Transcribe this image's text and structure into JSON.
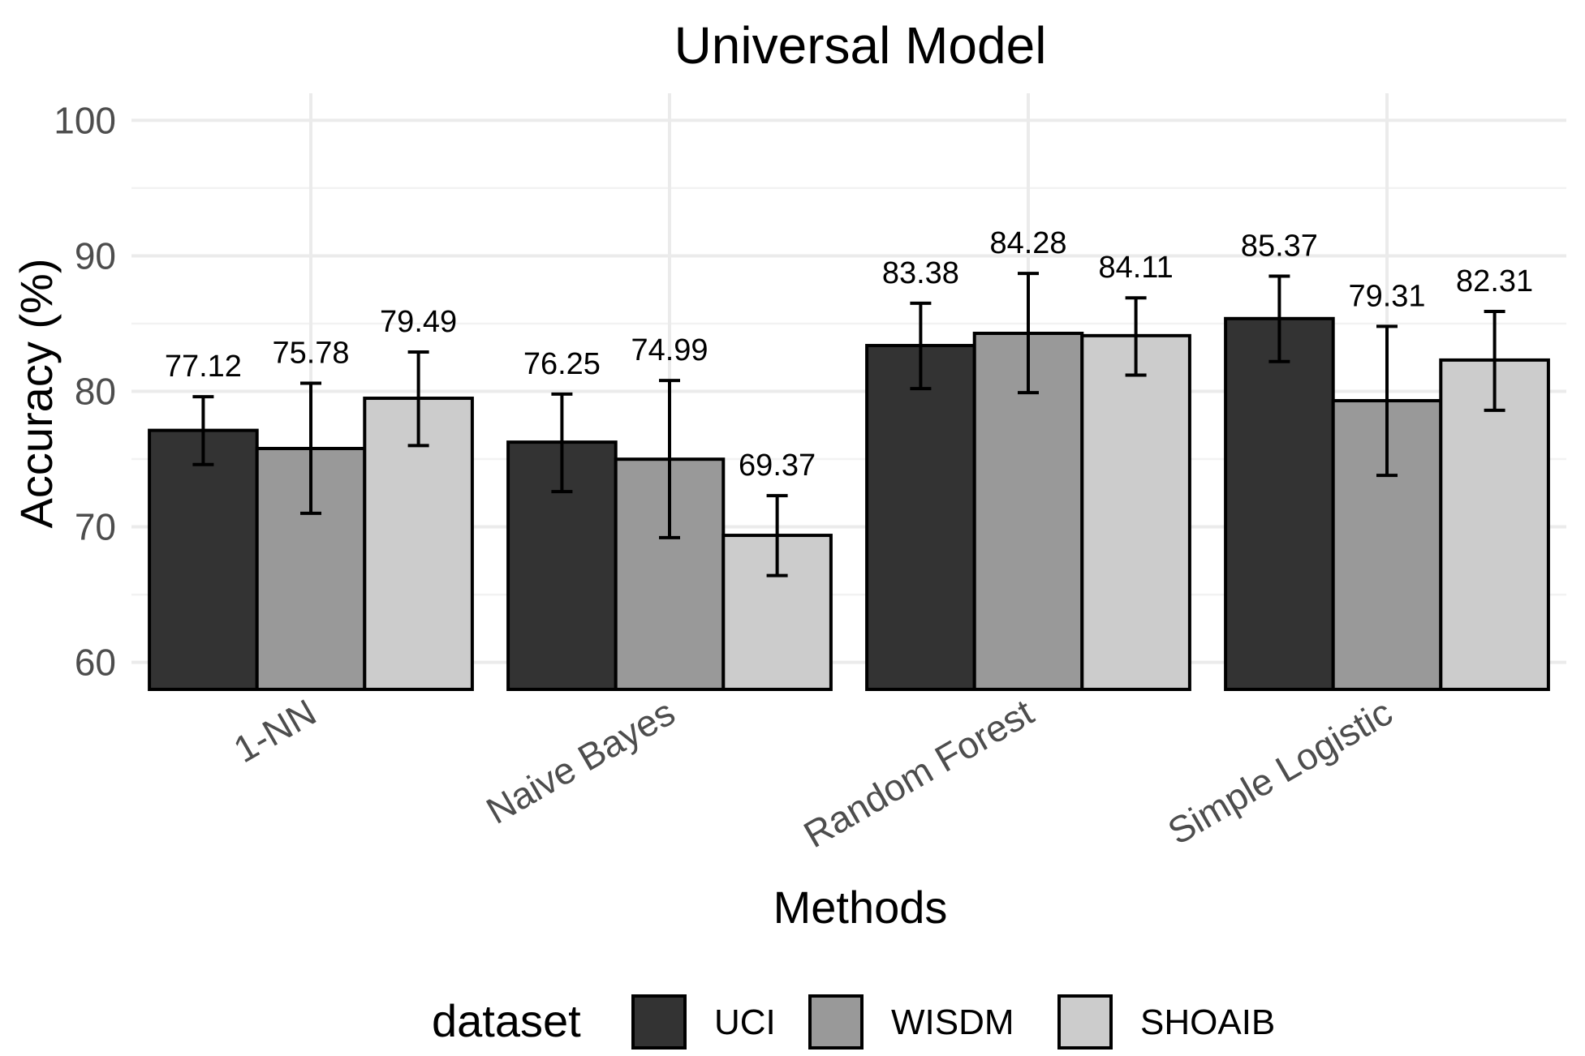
{
  "chart_data": {
    "type": "bar",
    "title": "Universal Model",
    "xlabel": "Methods",
    "ylabel": "Accuracy (%)",
    "ylim": [
      58,
      102
    ],
    "yticks": [
      60,
      70,
      80,
      90,
      100
    ],
    "grid": true,
    "categories": [
      "1-NN",
      "Naive Bayes",
      "Random Forest",
      "Simple Logistic"
    ],
    "legend": {
      "title": "dataset",
      "position": "bottom"
    },
    "series": [
      {
        "name": "UCI",
        "color": "#333333",
        "values": [
          77.12,
          76.25,
          83.38,
          85.37
        ],
        "err_low": [
          74.6,
          72.6,
          80.2,
          82.2
        ],
        "err_high": [
          79.6,
          79.8,
          86.5,
          88.5
        ]
      },
      {
        "name": "WISDM",
        "color": "#999999",
        "values": [
          75.78,
          74.99,
          84.28,
          79.31
        ],
        "err_low": [
          71.0,
          69.2,
          79.9,
          73.8
        ],
        "err_high": [
          80.6,
          80.8,
          88.7,
          84.8
        ]
      },
      {
        "name": "SHOAIB",
        "color": "#cccccc",
        "values": [
          79.49,
          69.37,
          84.11,
          82.31
        ],
        "err_low": [
          76.0,
          66.4,
          81.2,
          78.6
        ],
        "err_high": [
          82.9,
          72.3,
          86.9,
          85.9
        ]
      }
    ],
    "data_labels": [
      [
        "77.12",
        "76.25",
        "83.38",
        "85.37"
      ],
      [
        "75.78",
        "74.99",
        "84.28",
        "79.31"
      ],
      [
        "79.49",
        "69.37",
        "84.11",
        "82.31"
      ]
    ]
  }
}
